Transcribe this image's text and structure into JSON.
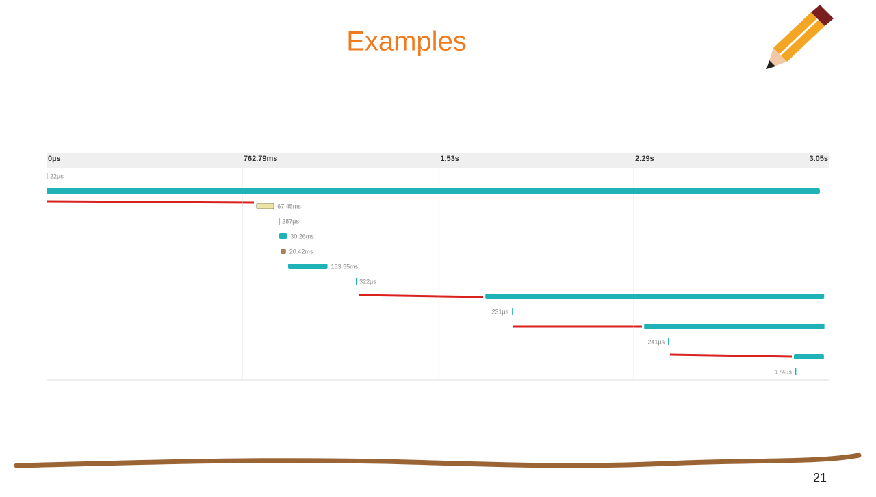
{
  "title": "Examples",
  "page_number": "21",
  "chart_data": {
    "type": "timeline",
    "xlim": [
      0,
      3.05
    ],
    "xticks": [
      {
        "value": 0,
        "label": "0µs"
      },
      {
        "value": 0.76279,
        "label": "762.79ms"
      },
      {
        "value": 1.53,
        "label": "1.53s"
      },
      {
        "value": 2.29,
        "label": "2.29s"
      },
      {
        "value": 3.05,
        "label": "3.05s"
      }
    ],
    "grid": true,
    "spans": [
      {
        "start": 0,
        "duration": 2.2e-05,
        "color": "#9e9e9e",
        "label": "22µs"
      },
      {
        "start": 0,
        "duration": 3.015,
        "color": "#1fb3b8"
      },
      {
        "start": 0.819,
        "duration": 0.06745,
        "color": "#ece3a8",
        "label": "67.45ms"
      },
      {
        "start": 0.905,
        "duration": 0.000287,
        "color": "#1fb3b8",
        "label": "287µs"
      },
      {
        "start": 0.907,
        "duration": 0.03026,
        "color": "#1fb3b8",
        "label": "30.26ms"
      },
      {
        "start": 0.913,
        "duration": 0.02042,
        "color": "#a8825a",
        "label": "20.42ms"
      },
      {
        "start": 0.942,
        "duration": 0.15355,
        "color": "#1fb3b8",
        "label": "153.55ms"
      },
      {
        "start": 1.206,
        "duration": 0.000322,
        "color": "#1fb3b8",
        "label": "322µs"
      },
      {
        "start": 1.711,
        "duration": 1.321,
        "color": "#1fb3b8"
      },
      {
        "start": 1.815,
        "duration": 0.000231,
        "color": "#1fb3b8",
        "label": "231µs"
      },
      {
        "start": 2.33,
        "duration": 0.703,
        "color": "#1fb3b8"
      },
      {
        "start": 2.423,
        "duration": 0.000241,
        "color": "#1fb3b8",
        "label": "241µs"
      },
      {
        "start": 2.914,
        "duration": 0.117,
        "color": "#1fb3b8"
      },
      {
        "start": 2.919,
        "duration": 0.000174,
        "color": "#1fb3b8",
        "label": "174µs"
      }
    ]
  }
}
